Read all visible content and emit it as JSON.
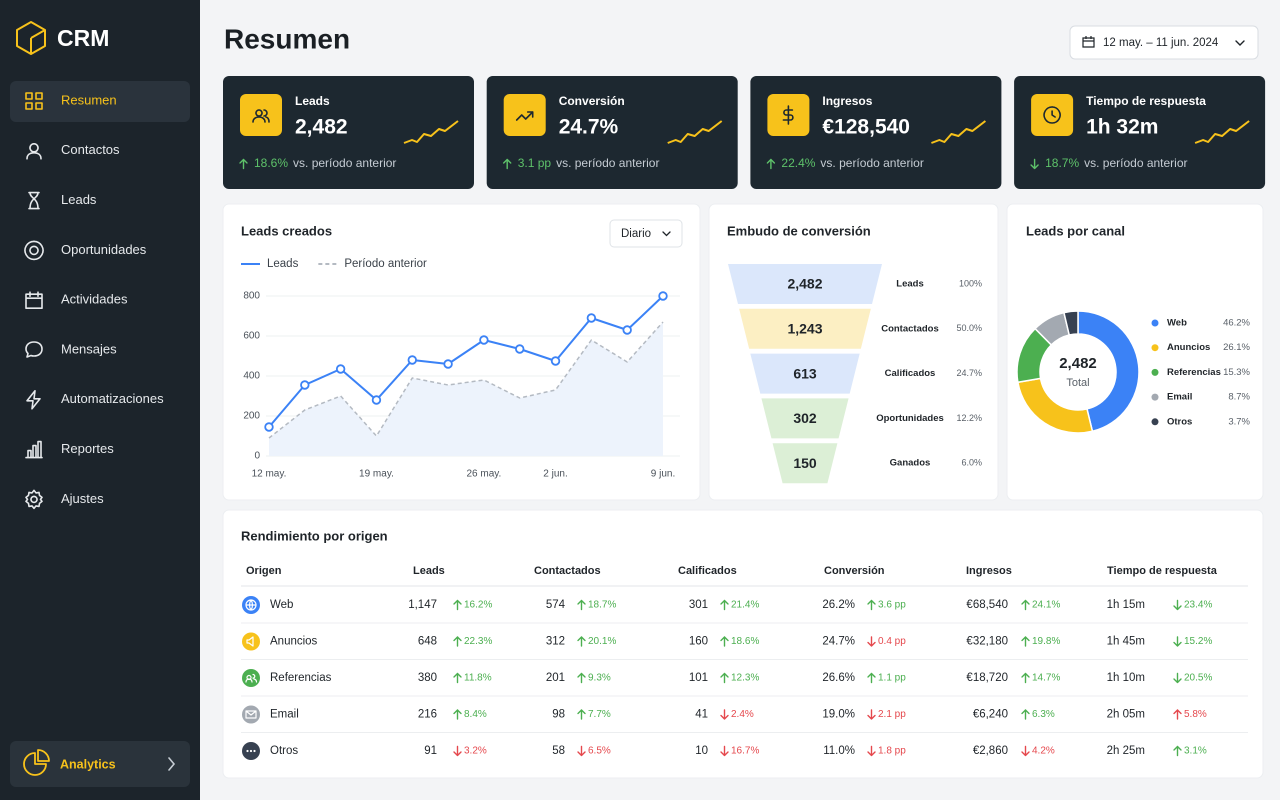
{
  "sidebar": {
    "brand": "CRM",
    "active": 0,
    "nav": [
      "Resumen",
      "Contactos",
      "Leads",
      "Oportunidades",
      "Actividades",
      "Mensajes",
      "Automatizaciones",
      "Reportes",
      "Ajustes"
    ],
    "footer": "Analytics"
  },
  "header": {
    "title": "Resumen",
    "date_range": "12 may. – 11 jun. 2024"
  },
  "kpis": [
    {
      "label": "Leads",
      "value": "2,482",
      "change": "18.6%",
      "trend": "up",
      "status": "good",
      "compare": "vs. período anterior"
    },
    {
      "label": "Conversión",
      "value": "24.7%",
      "change": "3.1 pp",
      "trend": "up",
      "status": "good",
      "compare": "vs. período anterior"
    },
    {
      "label": "Ingresos",
      "value": "€128,540",
      "change": "22.4%",
      "trend": "up",
      "status": "good",
      "compare": "vs. período anterior"
    },
    {
      "label": "Tiempo de respuesta",
      "value": "1h 32m",
      "change": "18.7%",
      "trend": "down",
      "status": "good",
      "compare": "vs. período anterior"
    }
  ],
  "leads_chart": {
    "type": "line",
    "title": "Leads creados",
    "filter": "Diario",
    "categories": [
      "12 may.",
      null,
      null,
      "19 may.",
      null,
      null,
      "26 may.",
      null,
      "2 jun.",
      null,
      null,
      "9 jun."
    ],
    "series": [
      {
        "name": "Leads",
        "color": "#3b82f6",
        "style": "solid",
        "values": [
          145,
          355,
          435,
          280,
          480,
          460,
          580,
          535,
          475,
          690,
          630,
          800
        ]
      },
      {
        "name": "Período anterior",
        "color": "#b4bac2",
        "style": "dashed",
        "values": [
          90,
          230,
          300,
          100,
          390,
          355,
          380,
          290,
          330,
          580,
          470,
          670
        ]
      }
    ],
    "ylim": [
      0,
      800
    ],
    "yticks": [
      0,
      200,
      400,
      600,
      800
    ]
  },
  "funnel": {
    "type": "funnel",
    "title": "Embudo de conversión",
    "stages": [
      "Leads",
      "Contactados",
      "Calificados",
      "Oportunidades",
      "Ganados"
    ],
    "values": [
      2482,
      1243,
      613,
      302,
      150
    ],
    "value_labels": [
      "2,482",
      "1,243",
      "613",
      "302",
      "150"
    ],
    "percent_labels": [
      "100%",
      "50.0%",
      "24.7%",
      "12.2%",
      "6.0%"
    ],
    "colors": [
      "#dbe7fb",
      "#fcefc3",
      "#dbe7fb",
      "#dcefd6",
      "#dcefd6"
    ]
  },
  "channels": {
    "type": "donut",
    "title": "Leads por canal",
    "total": "2,482",
    "total_label": "Total",
    "categories": [
      "Web",
      "Anuncios",
      "Referencias",
      "Email",
      "Otros"
    ],
    "values": [
      46.2,
      26.1,
      15.3,
      8.7,
      3.7
    ],
    "value_labels": [
      "46.2%",
      "26.1%",
      "15.3%",
      "8.7%",
      "3.7%"
    ],
    "colors": [
      "#3b82f6",
      "#f7c21b",
      "#4caf50",
      "#a3a9b1",
      "#374151"
    ]
  },
  "table": {
    "title": "Rendimiento por origen",
    "columns": [
      "Origen",
      "Leads",
      "Contactados",
      "Calificados",
      "Conversión",
      "Ingresos",
      "Tiempo de respuesta"
    ],
    "rows": [
      {
        "origin": "Web",
        "color": "#3b82f6",
        "cells": [
          {
            "value": "1,147",
            "change": "16.2%",
            "trend": "up",
            "status": "good"
          },
          {
            "value": "574",
            "change": "18.7%",
            "trend": "up",
            "status": "good"
          },
          {
            "value": "301",
            "change": "21.4%",
            "trend": "up",
            "status": "good"
          },
          {
            "value": "26.2%",
            "change": "3.6 pp",
            "trend": "up",
            "status": "good"
          },
          {
            "value": "€68,540",
            "change": "24.1%",
            "trend": "up",
            "status": "good"
          },
          {
            "value": "1h 15m",
            "change": "23.4%",
            "trend": "down",
            "status": "good"
          }
        ]
      },
      {
        "origin": "Anuncios",
        "color": "#f7c21b",
        "cells": [
          {
            "value": "648",
            "change": "22.3%",
            "trend": "up",
            "status": "good"
          },
          {
            "value": "312",
            "change": "20.1%",
            "trend": "up",
            "status": "good"
          },
          {
            "value": "160",
            "change": "18.6%",
            "trend": "up",
            "status": "good"
          },
          {
            "value": "24.7%",
            "change": "0.4 pp",
            "trend": "down",
            "status": "bad"
          },
          {
            "value": "€32,180",
            "change": "19.8%",
            "trend": "up",
            "status": "good"
          },
          {
            "value": "1h 45m",
            "change": "15.2%",
            "trend": "down",
            "status": "good"
          }
        ]
      },
      {
        "origin": "Referencias",
        "color": "#4caf50",
        "cells": [
          {
            "value": "380",
            "change": "11.8%",
            "trend": "up",
            "status": "good"
          },
          {
            "value": "201",
            "change": "9.3%",
            "trend": "up",
            "status": "good"
          },
          {
            "value": "101",
            "change": "12.3%",
            "trend": "up",
            "status": "good"
          },
          {
            "value": "26.6%",
            "change": "1.1 pp",
            "trend": "up",
            "status": "good"
          },
          {
            "value": "€18,720",
            "change": "14.7%",
            "trend": "up",
            "status": "good"
          },
          {
            "value": "1h 10m",
            "change": "20.5%",
            "trend": "down",
            "status": "good"
          }
        ]
      },
      {
        "origin": "Email",
        "color": "#a3a9b1",
        "cells": [
          {
            "value": "216",
            "change": "8.4%",
            "trend": "up",
            "status": "good"
          },
          {
            "value": "98",
            "change": "7.7%",
            "trend": "up",
            "status": "good"
          },
          {
            "value": "41",
            "change": "2.4%",
            "trend": "down",
            "status": "bad"
          },
          {
            "value": "19.0%",
            "change": "2.1 pp",
            "trend": "down",
            "status": "bad"
          },
          {
            "value": "€6,240",
            "change": "6.3%",
            "trend": "up",
            "status": "good"
          },
          {
            "value": "2h 05m",
            "change": "5.8%",
            "trend": "up",
            "status": "bad"
          }
        ]
      },
      {
        "origin": "Otros",
        "color": "#374151",
        "cells": [
          {
            "value": "91",
            "change": "3.2%",
            "trend": "down",
            "status": "bad"
          },
          {
            "value": "58",
            "change": "6.5%",
            "trend": "down",
            "status": "bad"
          },
          {
            "value": "10",
            "change": "16.7%",
            "trend": "down",
            "status": "bad"
          },
          {
            "value": "11.0%",
            "change": "1.8 pp",
            "trend": "down",
            "status": "bad"
          },
          {
            "value": "€2,860",
            "change": "4.2%",
            "trend": "down",
            "status": "bad"
          },
          {
            "value": "2h 25m",
            "change": "3.1%",
            "trend": "up",
            "status": "good"
          }
        ]
      }
    ]
  }
}
